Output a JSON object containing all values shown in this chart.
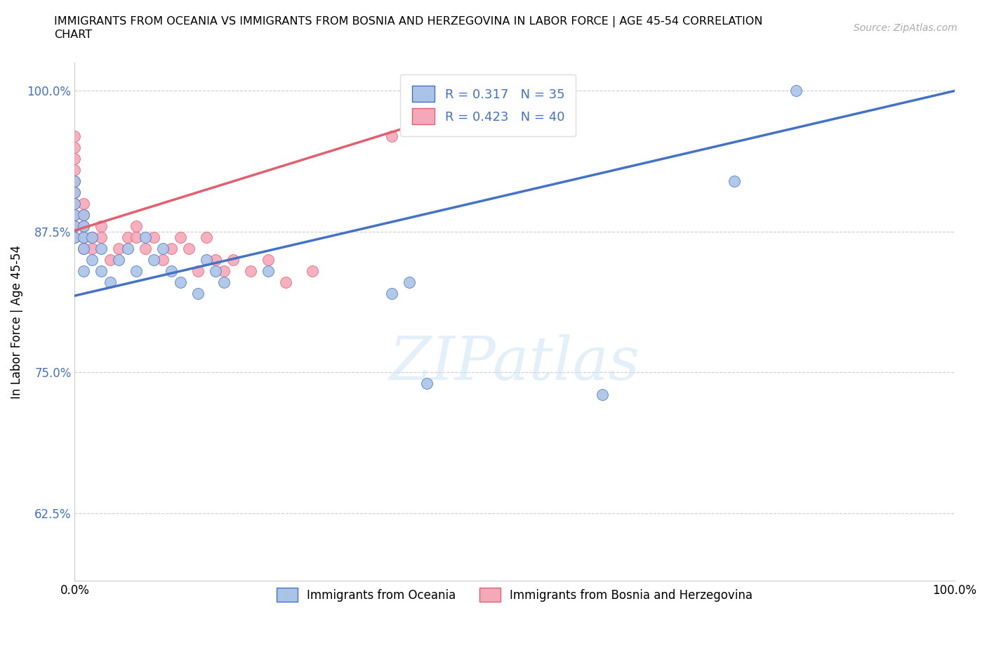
{
  "title": "IMMIGRANTS FROM OCEANIA VS IMMIGRANTS FROM BOSNIA AND HERZEGOVINA IN LABOR FORCE | AGE 45-54 CORRELATION\nCHART",
  "source_text": "Source: ZipAtlas.com",
  "ylabel": "In Labor Force | Age 45-54",
  "xlim": [
    0.0,
    1.0
  ],
  "ylim": [
    0.565,
    1.025
  ],
  "yticks": [
    0.625,
    0.75,
    0.875,
    1.0
  ],
  "ytick_labels": [
    "62.5%",
    "75.0%",
    "87.5%",
    "100.0%"
  ],
  "xticks": [
    0.0,
    0.25,
    0.5,
    0.75,
    1.0
  ],
  "xtick_labels": [
    "0.0%",
    "",
    "",
    "",
    "100.0%"
  ],
  "color_oceania": "#aac4e8",
  "color_bosnia": "#f5a8b8",
  "trendline_oceania": "#4472c4",
  "trendline_bosnia": "#e06070",
  "R_oceania": 0.317,
  "N_oceania": 35,
  "R_bosnia": 0.423,
  "N_bosnia": 40,
  "oceania_trendline_x": [
    0.0,
    1.0
  ],
  "oceania_trendline_y": [
    0.818,
    1.0
  ],
  "bosnia_trendline_x": [
    0.0,
    0.4
  ],
  "bosnia_trendline_y": [
    0.876,
    0.973
  ],
  "oceania_x": [
    0.0,
    0.0,
    0.0,
    0.0,
    0.0,
    0.0,
    0.01,
    0.01,
    0.01,
    0.01,
    0.01,
    0.02,
    0.02,
    0.03,
    0.03,
    0.04,
    0.05,
    0.06,
    0.07,
    0.08,
    0.09,
    0.1,
    0.11,
    0.12,
    0.14,
    0.15,
    0.16,
    0.17,
    0.22,
    0.36,
    0.38,
    0.4,
    0.6,
    0.75,
    0.82
  ],
  "oceania_y": [
    0.87,
    0.88,
    0.89,
    0.9,
    0.91,
    0.92,
    0.84,
    0.86,
    0.87,
    0.88,
    0.89,
    0.85,
    0.87,
    0.84,
    0.86,
    0.83,
    0.85,
    0.86,
    0.84,
    0.87,
    0.85,
    0.86,
    0.84,
    0.83,
    0.82,
    0.85,
    0.84,
    0.83,
    0.84,
    0.82,
    0.83,
    0.74,
    0.73,
    0.92,
    1.0
  ],
  "bosnia_x": [
    0.0,
    0.0,
    0.0,
    0.0,
    0.0,
    0.0,
    0.0,
    0.0,
    0.0,
    0.0,
    0.01,
    0.01,
    0.01,
    0.01,
    0.01,
    0.02,
    0.02,
    0.03,
    0.03,
    0.04,
    0.05,
    0.06,
    0.07,
    0.07,
    0.08,
    0.09,
    0.1,
    0.11,
    0.12,
    0.13,
    0.14,
    0.15,
    0.16,
    0.17,
    0.18,
    0.2,
    0.22,
    0.24,
    0.27,
    0.36
  ],
  "bosnia_y": [
    0.87,
    0.88,
    0.89,
    0.9,
    0.91,
    0.92,
    0.93,
    0.94,
    0.95,
    0.96,
    0.86,
    0.87,
    0.88,
    0.89,
    0.9,
    0.86,
    0.87,
    0.87,
    0.88,
    0.85,
    0.86,
    0.87,
    0.87,
    0.88,
    0.86,
    0.87,
    0.85,
    0.86,
    0.87,
    0.86,
    0.84,
    0.87,
    0.85,
    0.84,
    0.85,
    0.84,
    0.85,
    0.83,
    0.84,
    0.96
  ]
}
